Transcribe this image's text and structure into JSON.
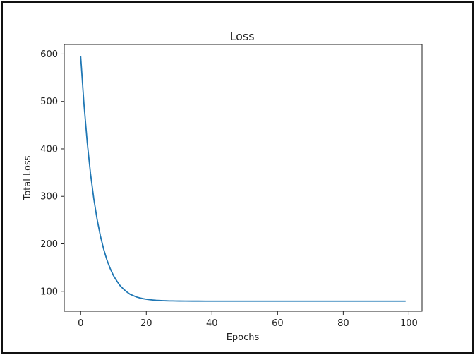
{
  "chart_data": {
    "type": "line",
    "title": "Loss",
    "xlabel": "Epochs",
    "ylabel": "Total Loss",
    "xlim": [
      -5,
      104
    ],
    "ylim": [
      58,
      620
    ],
    "xticks": [
      0,
      20,
      40,
      60,
      80,
      100
    ],
    "yticks": [
      100,
      200,
      300,
      400,
      500,
      600
    ],
    "grid": false,
    "line_color": "#1f77b4",
    "series": [
      {
        "x": [
          0,
          1,
          2,
          3,
          4,
          5,
          6,
          7,
          8,
          9,
          10,
          11,
          12,
          13,
          14,
          15,
          16,
          17,
          18,
          19,
          20,
          21,
          22,
          23,
          24,
          25,
          26,
          27,
          28,
          29,
          30,
          32,
          34,
          36,
          38,
          40,
          45,
          50,
          55,
          60,
          65,
          70,
          75,
          80,
          85,
          90,
          95,
          99
        ],
        "y": [
          595,
          495,
          414,
          348,
          295,
          252,
          217,
          189,
          166,
          148,
          133,
          122,
          112,
          105,
          99,
          94,
          91,
          88,
          86,
          84.5,
          83.3,
          82.3,
          81.6,
          81.0,
          80.6,
          80.3,
          80.0,
          79.8,
          79.7,
          79.6,
          79.5,
          79.4,
          79.3,
          79.3,
          79.2,
          79.2,
          79.2,
          79.2,
          79.2,
          79.2,
          79.2,
          79.2,
          79.2,
          79.2,
          79.2,
          79.2,
          79.2,
          79.2
        ]
      }
    ]
  }
}
